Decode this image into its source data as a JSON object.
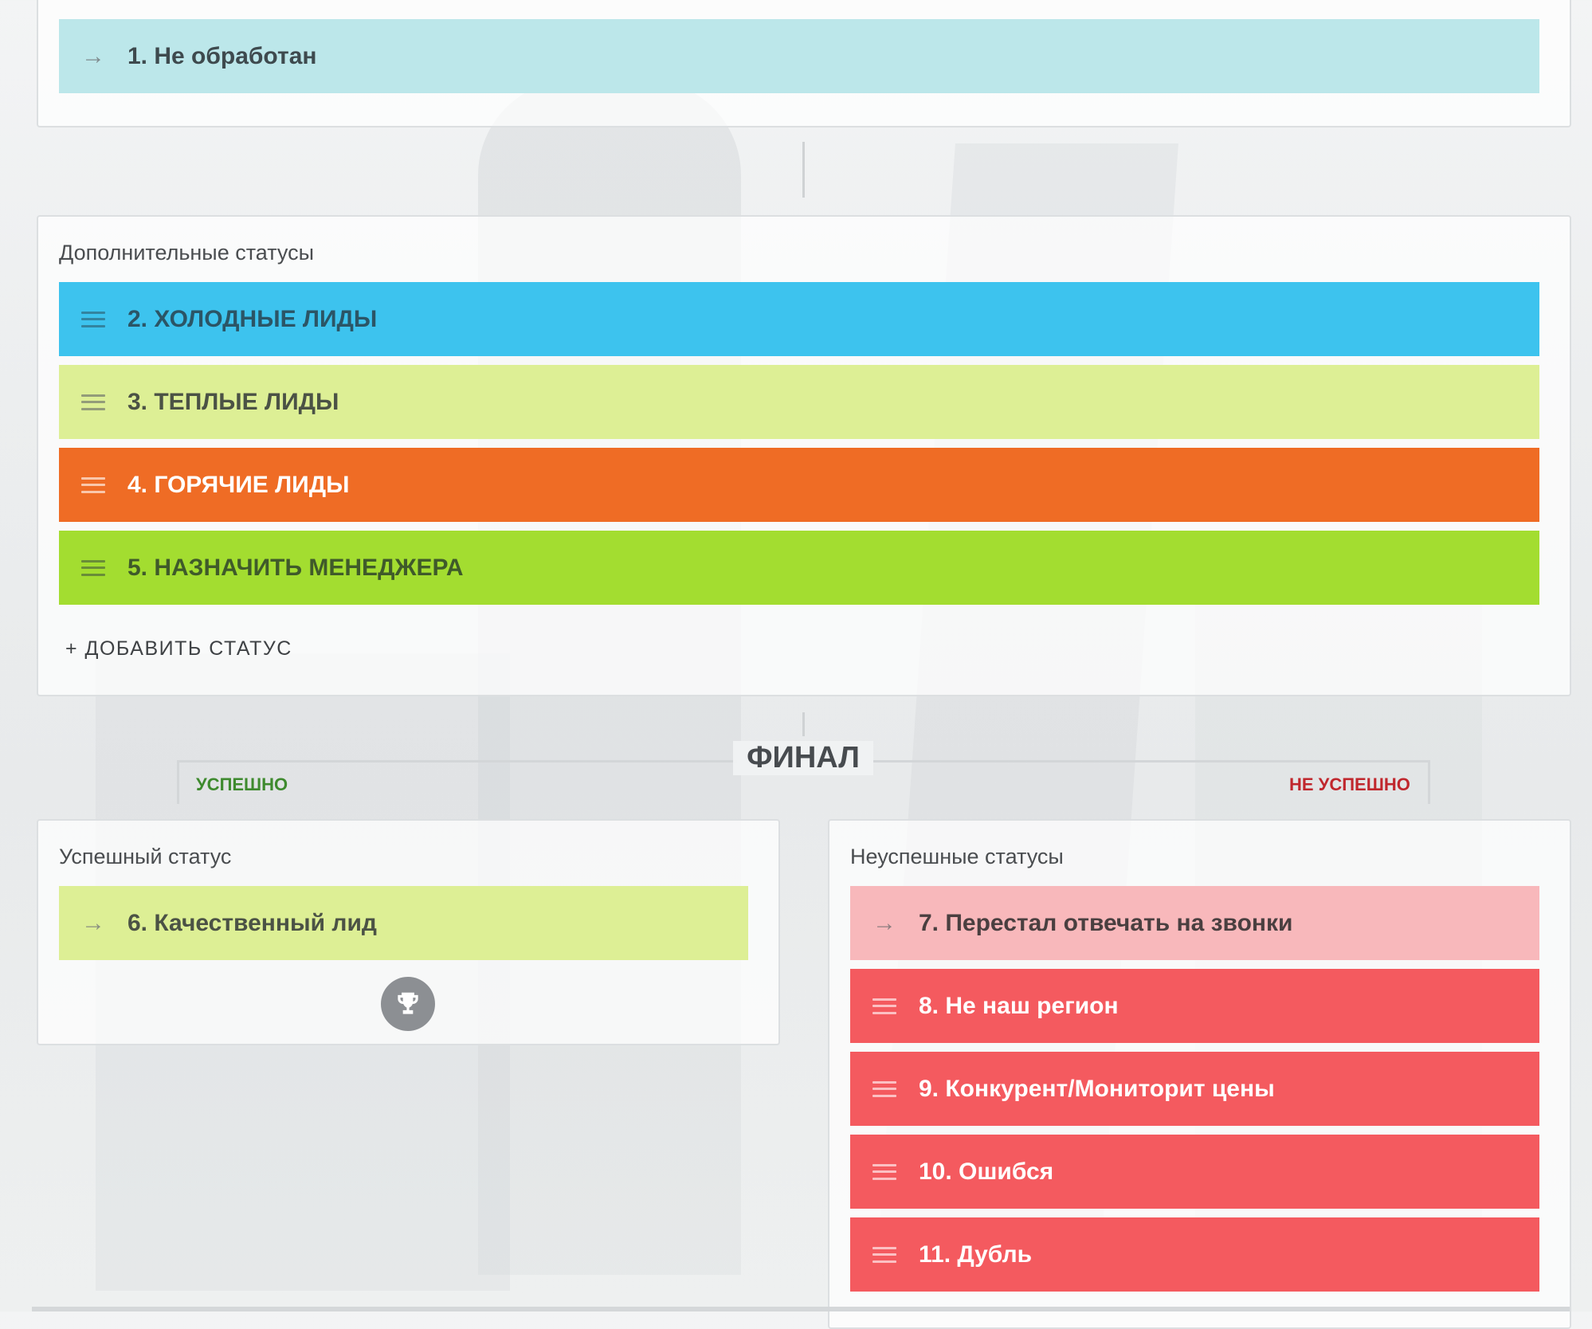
{
  "colors": {
    "unprocessed": "#bce7ea",
    "cold": "#3dc3ee",
    "warm": "#ddef95",
    "hot": "#ef6c25",
    "assign": "#a3dd30",
    "success": "#ddef95",
    "fail_light": "#f8b8bb",
    "fail": "#f45a5f"
  },
  "first_stage": {
    "statuses": [
      {
        "label": "1. Не обработан",
        "icon": "arrow-right-icon"
      }
    ]
  },
  "additional": {
    "title": "Дополнительные статусы",
    "statuses": [
      {
        "label": "2. ХОЛОДНЫЕ ЛИДЫ",
        "icon": "drag-handle-icon"
      },
      {
        "label": "3. ТЕПЛЫЕ ЛИДЫ",
        "icon": "drag-handle-icon"
      },
      {
        "label": "4. ГОРЯЧИЕ ЛИДЫ",
        "icon": "drag-handle-icon"
      },
      {
        "label": "5. НАЗНАЧИТЬ МЕНЕДЖЕРА",
        "icon": "drag-handle-icon"
      }
    ],
    "add_label": "+ ДОБАВИТЬ СТАТУС"
  },
  "final": {
    "title": "ФИНАЛ",
    "success_tag": "УСПЕШНО",
    "fail_tag": "НЕ УСПЕШНО"
  },
  "success": {
    "title": "Успешный статус",
    "statuses": [
      {
        "label": "6. Качественный лид",
        "icon": "arrow-right-icon"
      }
    ],
    "trophy_icon": "trophy-icon"
  },
  "fail": {
    "title": "Неуспешные статусы",
    "statuses": [
      {
        "label": "7. Перестал отвечать на звонки",
        "icon": "arrow-right-icon"
      },
      {
        "label": "8. Не наш регион",
        "icon": "drag-handle-icon"
      },
      {
        "label": "9. Конкурент/Мониторит цены",
        "icon": "drag-handle-icon"
      },
      {
        "label": "10. Ошибся",
        "icon": "drag-handle-icon"
      },
      {
        "label": "11. Дубль",
        "icon": "drag-handle-icon"
      }
    ]
  }
}
